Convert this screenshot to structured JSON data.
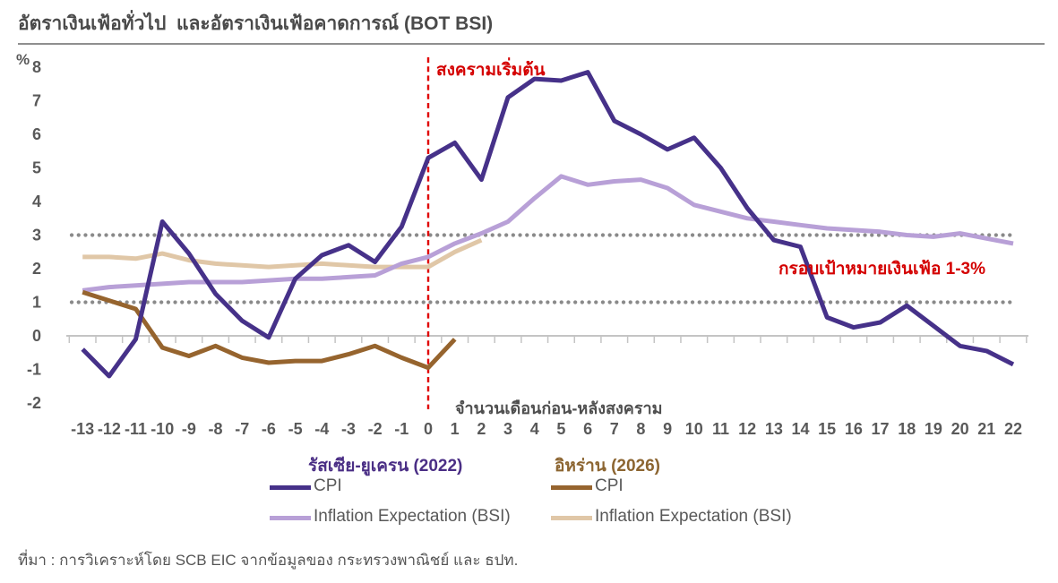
{
  "header": {
    "title": "อัตราเงินเฟ้อทั่วไป  และอัตราเงินเฟ้อคาดการณ์ (BOT BSI)"
  },
  "annotations": {
    "war_start": "สงครามเริ่มต้น",
    "target_band": "กรอบเป้าหมายเงินเฟ้อ 1-3%",
    "y_unit": "%"
  },
  "legend": {
    "groups": [
      {
        "header": "รัสเซีย-ยูเครน (2022)",
        "header_color": "#4a2e85",
        "items": [
          {
            "label": "CPI",
            "color": "#463189"
          },
          {
            "label": "Inflation Expectation (BSI)",
            "color": "#b8a0d7"
          }
        ]
      },
      {
        "header": "อิหร่าน (2026)",
        "header_color": "#8c6531",
        "items": [
          {
            "label": "CPI",
            "color": "#96642e"
          },
          {
            "label": "Inflation Expectation (BSI)",
            "color": "#e0c7a7"
          }
        ]
      }
    ]
  },
  "footer": {
    "source": "ที่มา : การวิเคราะห์โดย SCB EIC จากข้อมูลของ กระทรวงพาณิชย์ และ ธปท."
  },
  "chart_data": {
    "type": "line",
    "title": "อัตราเงินเฟ้อทั่วไป  และอัตราเงินเฟ้อคาดการณ์ (BOT BSI)",
    "xlabel": "จำนวนเดือนก่อน-หลังสงคราม",
    "ylabel": "%",
    "xlim": [
      -13,
      22
    ],
    "ylim": [
      -2,
      8
    ],
    "grid": "off",
    "legend_position": "bottom",
    "y_ticks": [
      8,
      7,
      6,
      5,
      4,
      3,
      2,
      1,
      0,
      -1,
      -2
    ],
    "x_ticks": [
      -13,
      -12,
      -11,
      -10,
      -9,
      -8,
      -7,
      -6,
      -5,
      -4,
      -3,
      -2,
      -1,
      0,
      1,
      2,
      3,
      4,
      5,
      6,
      7,
      8,
      9,
      10,
      11,
      12,
      13,
      14,
      15,
      16,
      17,
      18,
      19,
      20,
      21,
      22
    ],
    "target_lines": {
      "levels": [
        1,
        3
      ],
      "label": "กรอบเป้าหมายเงินเฟ้อ 1-3%",
      "style": "dotted",
      "color": "#8a8a8a"
    },
    "event_line": {
      "x": 0,
      "label": "สงครามเริ่มต้น",
      "style": "dashed",
      "color": "#e00000"
    },
    "series": [
      {
        "id": "iran-bsi",
        "group": "อิหร่าน (2026)",
        "name": "Inflation Expectation (BSI)",
        "color": "#e0c7a7",
        "start_month": -13,
        "values": [
          2.35,
          2.35,
          2.3,
          2.45,
          2.25,
          2.15,
          2.1,
          2.05,
          2.1,
          2.15,
          2.1,
          2.05,
          2.05,
          2.05,
          2.5,
          2.85
        ]
      },
      {
        "id": "ru-bsi",
        "group": "รัสเซีย-ยูเครน (2022)",
        "name": "Inflation Expectation (BSI)",
        "color": "#b8a0d7",
        "start_month": -13,
        "values": [
          1.35,
          1.45,
          1.5,
          1.55,
          1.6,
          1.6,
          1.6,
          1.65,
          1.7,
          1.7,
          1.75,
          1.8,
          2.15,
          2.35,
          2.75,
          3.05,
          3.4,
          4.1,
          4.75,
          4.5,
          4.6,
          4.65,
          4.4,
          3.9,
          3.7,
          3.5,
          3.4,
          3.3,
          3.2,
          3.15,
          3.1,
          3.0,
          2.95,
          3.05,
          2.9,
          2.75
        ]
      },
      {
        "id": "iran-cpi",
        "group": "อิหร่าน (2026)",
        "name": "CPI",
        "color": "#96642e",
        "start_month": -13,
        "values": [
          1.3,
          1.05,
          0.8,
          -0.35,
          -0.6,
          -0.3,
          -0.65,
          -0.8,
          -0.75,
          -0.75,
          -0.55,
          -0.3,
          -0.65,
          -0.95,
          -0.1
        ]
      },
      {
        "id": "ru-cpi",
        "group": "รัสเซีย-ยูเครน (2022)",
        "name": "CPI",
        "color": "#463189",
        "start_month": -13,
        "values": [
          -0.4,
          -1.2,
          -0.1,
          3.4,
          2.45,
          1.25,
          0.45,
          -0.05,
          1.7,
          2.4,
          2.7,
          2.2,
          3.25,
          5.3,
          5.75,
          4.65,
          7.1,
          7.65,
          7.6,
          7.85,
          6.4,
          6.0,
          5.55,
          5.9,
          5.0,
          3.8,
          2.85,
          2.65,
          0.55,
          0.25,
          0.4,
          0.9,
          0.3,
          -0.3,
          -0.45,
          -0.85
        ]
      }
    ]
  }
}
